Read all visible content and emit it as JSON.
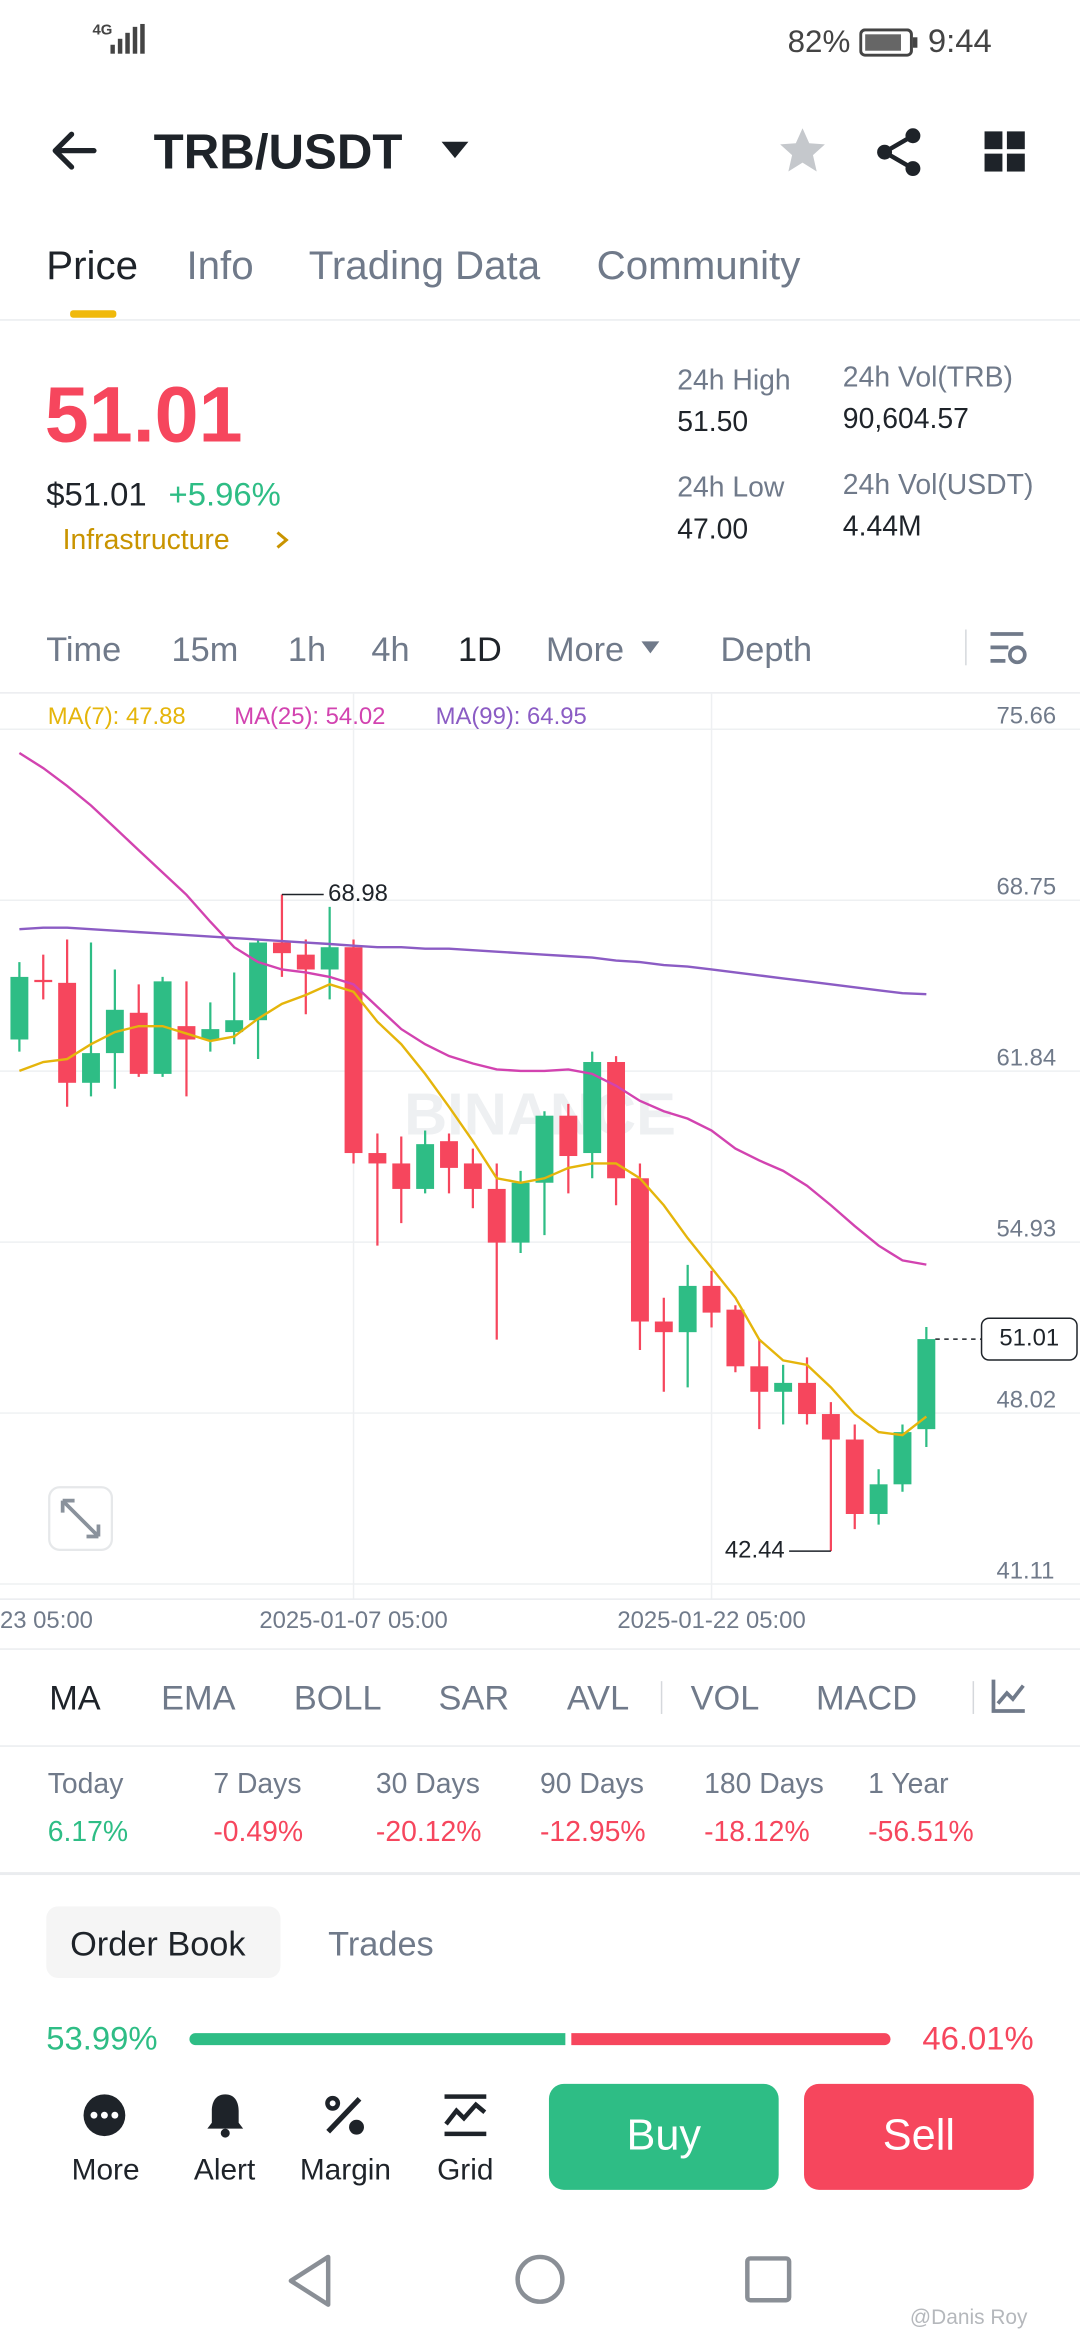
{
  "status_bar": {
    "network": "4G",
    "battery": "82%",
    "time": "9:44"
  },
  "header": {
    "pair": "TRB/USDT"
  },
  "tabs": [
    "Price",
    "Info",
    "Trading Data",
    "Community"
  ],
  "ticker": {
    "last_price": "51.01",
    "usd_price": "$51.01",
    "change": "+5.96%",
    "tag": "Infrastructure",
    "stats": [
      {
        "label": "24h High",
        "value": "51.50"
      },
      {
        "label": "24h Vol(TRB)",
        "value": "90,604.57"
      },
      {
        "label": "24h Low",
        "value": "47.00"
      },
      {
        "label": "24h Vol(USDT)",
        "value": "4.44M"
      }
    ]
  },
  "intervals": [
    "Time",
    "15m",
    "1h",
    "4h",
    "1D",
    "More",
    "Depth"
  ],
  "chart_data": {
    "type": "candlestick",
    "watermark": "BINANCE",
    "categories": [
      null,
      null,
      null,
      null,
      null,
      null,
      null,
      null,
      null,
      null,
      null,
      null,
      null,
      null,
      "2025-01-07 05:00",
      null,
      null,
      null,
      null,
      null,
      null,
      null,
      null,
      null,
      null,
      null,
      null,
      null,
      null,
      "2025-01-22 05:00",
      null,
      null,
      null,
      null,
      null,
      null,
      null,
      null,
      null
    ],
    "edge_label": "23 05:00",
    "open": [
      63.12,
      65.53,
      65.41,
      61.37,
      62.57,
      64.2,
      61.73,
      63.66,
      63.12,
      63.42,
      63.9,
      67.04,
      66.55,
      65.95,
      66.85,
      58.53,
      58.11,
      57.08,
      59.01,
      58.11,
      57.08,
      54.91,
      57.33,
      60.04,
      58.53,
      62.21,
      57.51,
      51.72,
      51.29,
      53.16,
      52.2,
      49.91,
      48.88,
      49.24,
      47.98,
      46.95,
      43.94,
      45.14,
      47.37
    ],
    "high": [
      66.25,
      66.55,
      67.16,
      67.04,
      65.95,
      65.35,
      65.65,
      65.47,
      64.62,
      65.83,
      67.16,
      68.98,
      67.16,
      68.48,
      67.16,
      59.32,
      59.2,
      59.44,
      59.32,
      58.71,
      58.11,
      57.81,
      60.22,
      60.52,
      62.63,
      62.45,
      58.11,
      52.68,
      54.01,
      53.77,
      52.38,
      50.99,
      49.97,
      50.27,
      48.46,
      47.56,
      45.75,
      47.56,
      51.5
    ],
    "low": [
      62.63,
      64.74,
      60.4,
      60.82,
      61.13,
      61.61,
      61.61,
      60.82,
      62.63,
      62.93,
      62.33,
      65.65,
      64.14,
      64.74,
      58.11,
      54.79,
      55.7,
      56.9,
      56.9,
      56.3,
      50.99,
      54.49,
      55.21,
      56.9,
      57.51,
      56.42,
      50.57,
      48.88,
      49.06,
      51.48,
      49.67,
      47.37,
      47.56,
      47.56,
      42.44,
      43.33,
      43.51,
      44.84,
      46.65
    ],
    "close": [
      65.65,
      65.47,
      61.37,
      62.57,
      64.32,
      61.73,
      65.47,
      63.12,
      63.54,
      63.9,
      67.04,
      66.61,
      65.95,
      66.85,
      58.53,
      58.11,
      57.08,
      58.89,
      57.93,
      57.08,
      54.91,
      57.33,
      60.04,
      58.41,
      62.21,
      57.51,
      51.72,
      51.29,
      53.16,
      52.08,
      49.91,
      48.88,
      49.24,
      47.98,
      46.95,
      43.94,
      45.14,
      47.25,
      51.01
    ],
    "up_color": "#2ebd85",
    "down_color": "#f6465d",
    "series": [
      {
        "name": "MA(7)",
        "label": "MA(7): 47.88",
        "color": "#e5b50b",
        "values": [
          61.85,
          62.21,
          62.33,
          62.93,
          63.42,
          63.66,
          63.66,
          63.36,
          63.06,
          63.24,
          63.96,
          64.56,
          64.92,
          65.35,
          65.05,
          63.84,
          62.93,
          61.73,
          60.4,
          59.01,
          57.51,
          57.33,
          57.51,
          57.93,
          58.11,
          58.11,
          57.51,
          56.42,
          55.09,
          53.89,
          52.68,
          50.99,
          50.15,
          49.97,
          49.06,
          47.98,
          47.25,
          47.13,
          47.88
        ]
      },
      {
        "name": "MA(25)",
        "label": "MA(25): 54.02",
        "color": "#d243b0",
        "values": [
          74.7,
          74.09,
          73.37,
          72.58,
          71.68,
          70.77,
          69.87,
          68.97,
          67.88,
          66.85,
          66.25,
          65.95,
          65.83,
          65.65,
          65.35,
          64.44,
          63.54,
          62.93,
          62.45,
          62.15,
          61.91,
          61.85,
          61.85,
          61.91,
          61.73,
          61.25,
          60.64,
          60.22,
          59.92,
          59.44,
          58.71,
          58.23,
          57.81,
          57.21,
          56.42,
          55.58,
          54.79,
          54.19,
          54.02
        ]
      },
      {
        "name": "MA(99)",
        "label": "MA(99): 64.95",
        "color": "#8b5cc4",
        "values": [
          67.58,
          67.64,
          67.64,
          67.58,
          67.52,
          67.46,
          67.4,
          67.34,
          67.28,
          67.22,
          67.16,
          67.1,
          67.04,
          66.98,
          66.91,
          66.85,
          66.85,
          66.79,
          66.79,
          66.73,
          66.67,
          66.61,
          66.55,
          66.49,
          66.43,
          66.31,
          66.25,
          66.13,
          66.07,
          65.95,
          65.83,
          65.71,
          65.59,
          65.47,
          65.35,
          65.23,
          65.11,
          64.99,
          64.95
        ]
      }
    ],
    "ylim": [
      40.5,
      77.1
    ],
    "yticks": [
      75.66,
      68.75,
      61.84,
      54.93,
      48.02,
      41.11
    ],
    "grid": true
  },
  "indicators": [
    "MA",
    "EMA",
    "BOLL",
    "SAR",
    "AVL",
    "VOL",
    "MACD"
  ],
  "performance": [
    {
      "period": "Today",
      "change": "6.17%"
    },
    {
      "period": "7 Days",
      "change": "-0.49%"
    },
    {
      "period": "30 Days",
      "change": "-20.12%"
    },
    {
      "period": "90 Days",
      "change": "-12.95%"
    },
    {
      "period": "180 Days",
      "change": "-18.12%"
    },
    {
      "period": "1 Year",
      "change": "-56.51%"
    }
  ],
  "book_tabs": [
    "Order Book",
    "Trades"
  ],
  "order_ratio": {
    "values": [
      53.99,
      46.01
    ],
    "value_labels": [
      "53.99%",
      "46.01%"
    ]
  },
  "actions": [
    "More",
    "Alert",
    "Margin",
    "Grid"
  ],
  "buttons": [
    "Buy",
    "Sell"
  ],
  "watermark": "@Danis Roy"
}
